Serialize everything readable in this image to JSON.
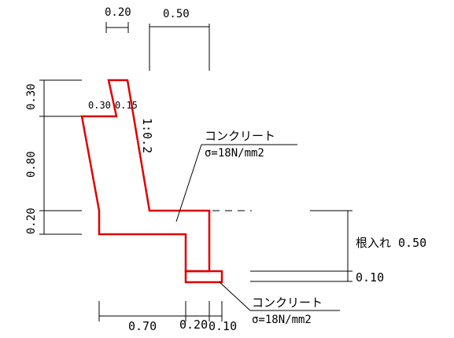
{
  "colors": {
    "outline": "#e00000",
    "dimension": "#000000"
  },
  "top_dims": {
    "d1": "0.20",
    "d2": "0.50"
  },
  "left_dims": {
    "d1": "0.30",
    "d2": "0.80",
    "d3": "0.20"
  },
  "top_notch": {
    "a": "0.30",
    "b": "0.15"
  },
  "slope": "1:0.2",
  "callout_upper": {
    "material": "コンクリート",
    "strength": "σ=18N/mm2"
  },
  "callout_lower": {
    "material": "コンクリート",
    "strength": "σ=18N/mm2"
  },
  "right_dims": {
    "embed": "根入れ 0.50",
    "base": "0.10"
  },
  "bottom_dims": {
    "d1": "0.70",
    "d2": "0.20",
    "d3": "0.10"
  }
}
